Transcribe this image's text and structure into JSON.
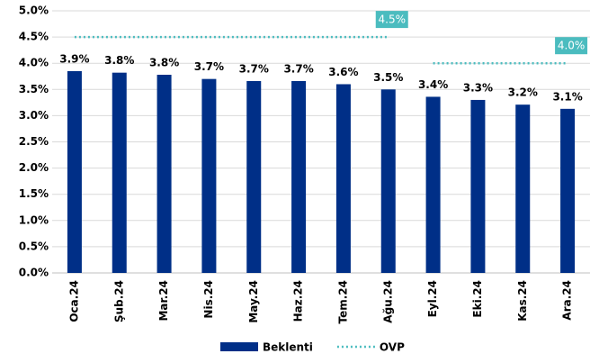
{
  "chart_data": {
    "type": "bar",
    "categories": [
      "Oca.24",
      "Şub.24",
      "Mar.24",
      "Nis.24",
      "May.24",
      "Haz.24",
      "Tem.24",
      "Ağu.24",
      "Eyl.24",
      "Eki.24",
      "Kas.24",
      "Ara.24"
    ],
    "series": [
      {
        "name": "Beklenti",
        "type": "bar",
        "color": "#002f87",
        "values": [
          3.85,
          3.82,
          3.78,
          3.7,
          3.66,
          3.66,
          3.6,
          3.5,
          3.36,
          3.3,
          3.21,
          3.13
        ],
        "value_labels": [
          "3.9%",
          "3.8%",
          "3.8%",
          "3.7%",
          "3.7%",
          "3.7%",
          "3.6%",
          "3.5%",
          "3.4%",
          "3.3%",
          "3.2%",
          "3.1%"
        ]
      },
      {
        "name": "OVP",
        "type": "line",
        "color": "#4bbcbf",
        "values": [
          4.5,
          4.5,
          4.5,
          4.5,
          4.5,
          4.5,
          4.5,
          4.5,
          4.0,
          4.0,
          4.0,
          4.0
        ]
      }
    ],
    "annotations": [
      "4.5%",
      "4.0%"
    ],
    "ylim": [
      0,
      5
    ],
    "yticks": [
      {
        "value": 0,
        "label": "0.0%"
      },
      {
        "value": 0.5,
        "label": "0.5%"
      },
      {
        "value": 1,
        "label": "1.0%"
      },
      {
        "value": 1.5,
        "label": "1.5%"
      },
      {
        "value": 2,
        "label": "2.0%"
      },
      {
        "value": 2.5,
        "label": "2.5%"
      },
      {
        "value": 3,
        "label": "3.0%"
      },
      {
        "value": 3.5,
        "label": "3.5%"
      },
      {
        "value": 4,
        "label": "4.0%"
      },
      {
        "value": 4.5,
        "label": "4.5%"
      },
      {
        "value": 5,
        "label": "5.0%"
      }
    ],
    "grid": true,
    "legend": "bottom"
  }
}
